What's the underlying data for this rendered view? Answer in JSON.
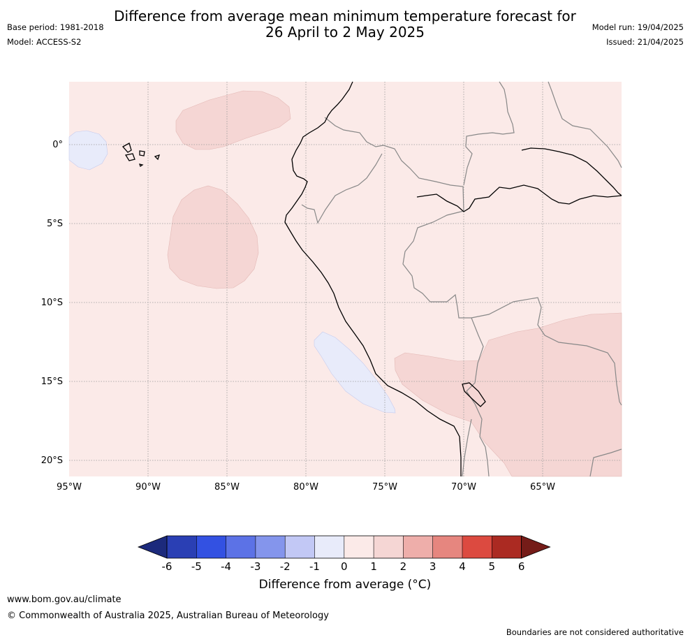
{
  "title": "Difference from average mean minimum temperature forecast for\n26 April to 2 May 2025",
  "meta": {
    "base_period": "Base period: 1981-2018",
    "model": "Model: ACCESS-S2",
    "model_run": "Model run: 19/04/2025",
    "issued": "Issued: 21/04/2025"
  },
  "map": {
    "lat_labels": [
      "0°",
      "5°S",
      "10°S",
      "15°S",
      "20°S"
    ],
    "lon_labels": [
      "95°W",
      "90°W",
      "85°W",
      "80°W",
      "75°W",
      "70°W",
      "65°W"
    ],
    "background_category": "0 to 1",
    "background_color": "#fbeae8",
    "warm_anomaly_color": "#f5d6d4",
    "cool_anomaly_color": "#e8ebfa"
  },
  "colorbar": {
    "title": "Difference from average (°C)",
    "ticks": [
      "-6",
      "-5",
      "-4",
      "-3",
      "-2",
      "-1",
      "0",
      "1",
      "2",
      "3",
      "4",
      "5",
      "6"
    ],
    "colors": [
      "#1c2a7c",
      "#2a3fb4",
      "#3351e2",
      "#5c72e6",
      "#8495ec",
      "#c2c8f5",
      "#e8ebfa",
      "#fbeae8",
      "#f5d6d4",
      "#eeaeaa",
      "#e6867f",
      "#dc4a40",
      "#ab2a22",
      "#751c18"
    ]
  },
  "footer": {
    "url": "www.bom.gov.au/climate",
    "copyright": "© Commonwealth of Australia 2025, Australian Bureau of Meteorology",
    "note": "Boundaries are not considered authoritative"
  }
}
